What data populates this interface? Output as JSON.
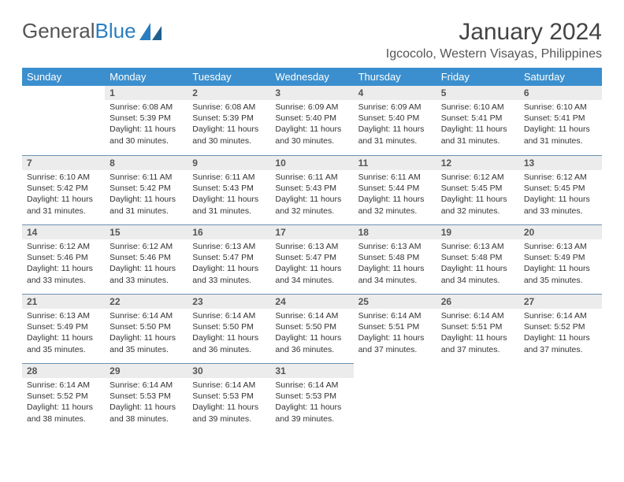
{
  "logo": {
    "text1": "General",
    "text2": "Blue"
  },
  "title": "January 2024",
  "location": "Igcocolo, Western Visayas, Philippines",
  "colors": {
    "header_bg": "#3b8fce",
    "daynum_bg": "#ececec",
    "cell_border": "#6a91b2",
    "text": "#333333",
    "logo_gray": "#555555",
    "logo_blue": "#2a7ec0"
  },
  "day_names": [
    "Sunday",
    "Monday",
    "Tuesday",
    "Wednesday",
    "Thursday",
    "Friday",
    "Saturday"
  ],
  "weeks": [
    [
      {
        "day": "",
        "sunrise": "",
        "sunset": "",
        "daylight": ""
      },
      {
        "day": "1",
        "sunrise": "Sunrise: 6:08 AM",
        "sunset": "Sunset: 5:39 PM",
        "daylight": "Daylight: 11 hours and 30 minutes."
      },
      {
        "day": "2",
        "sunrise": "Sunrise: 6:08 AM",
        "sunset": "Sunset: 5:39 PM",
        "daylight": "Daylight: 11 hours and 30 minutes."
      },
      {
        "day": "3",
        "sunrise": "Sunrise: 6:09 AM",
        "sunset": "Sunset: 5:40 PM",
        "daylight": "Daylight: 11 hours and 30 minutes."
      },
      {
        "day": "4",
        "sunrise": "Sunrise: 6:09 AM",
        "sunset": "Sunset: 5:40 PM",
        "daylight": "Daylight: 11 hours and 31 minutes."
      },
      {
        "day": "5",
        "sunrise": "Sunrise: 6:10 AM",
        "sunset": "Sunset: 5:41 PM",
        "daylight": "Daylight: 11 hours and 31 minutes."
      },
      {
        "day": "6",
        "sunrise": "Sunrise: 6:10 AM",
        "sunset": "Sunset: 5:41 PM",
        "daylight": "Daylight: 11 hours and 31 minutes."
      }
    ],
    [
      {
        "day": "7",
        "sunrise": "Sunrise: 6:10 AM",
        "sunset": "Sunset: 5:42 PM",
        "daylight": "Daylight: 11 hours and 31 minutes."
      },
      {
        "day": "8",
        "sunrise": "Sunrise: 6:11 AM",
        "sunset": "Sunset: 5:42 PM",
        "daylight": "Daylight: 11 hours and 31 minutes."
      },
      {
        "day": "9",
        "sunrise": "Sunrise: 6:11 AM",
        "sunset": "Sunset: 5:43 PM",
        "daylight": "Daylight: 11 hours and 31 minutes."
      },
      {
        "day": "10",
        "sunrise": "Sunrise: 6:11 AM",
        "sunset": "Sunset: 5:43 PM",
        "daylight": "Daylight: 11 hours and 32 minutes."
      },
      {
        "day": "11",
        "sunrise": "Sunrise: 6:11 AM",
        "sunset": "Sunset: 5:44 PM",
        "daylight": "Daylight: 11 hours and 32 minutes."
      },
      {
        "day": "12",
        "sunrise": "Sunrise: 6:12 AM",
        "sunset": "Sunset: 5:45 PM",
        "daylight": "Daylight: 11 hours and 32 minutes."
      },
      {
        "day": "13",
        "sunrise": "Sunrise: 6:12 AM",
        "sunset": "Sunset: 5:45 PM",
        "daylight": "Daylight: 11 hours and 33 minutes."
      }
    ],
    [
      {
        "day": "14",
        "sunrise": "Sunrise: 6:12 AM",
        "sunset": "Sunset: 5:46 PM",
        "daylight": "Daylight: 11 hours and 33 minutes."
      },
      {
        "day": "15",
        "sunrise": "Sunrise: 6:12 AM",
        "sunset": "Sunset: 5:46 PM",
        "daylight": "Daylight: 11 hours and 33 minutes."
      },
      {
        "day": "16",
        "sunrise": "Sunrise: 6:13 AM",
        "sunset": "Sunset: 5:47 PM",
        "daylight": "Daylight: 11 hours and 33 minutes."
      },
      {
        "day": "17",
        "sunrise": "Sunrise: 6:13 AM",
        "sunset": "Sunset: 5:47 PM",
        "daylight": "Daylight: 11 hours and 34 minutes."
      },
      {
        "day": "18",
        "sunrise": "Sunrise: 6:13 AM",
        "sunset": "Sunset: 5:48 PM",
        "daylight": "Daylight: 11 hours and 34 minutes."
      },
      {
        "day": "19",
        "sunrise": "Sunrise: 6:13 AM",
        "sunset": "Sunset: 5:48 PM",
        "daylight": "Daylight: 11 hours and 34 minutes."
      },
      {
        "day": "20",
        "sunrise": "Sunrise: 6:13 AM",
        "sunset": "Sunset: 5:49 PM",
        "daylight": "Daylight: 11 hours and 35 minutes."
      }
    ],
    [
      {
        "day": "21",
        "sunrise": "Sunrise: 6:13 AM",
        "sunset": "Sunset: 5:49 PM",
        "daylight": "Daylight: 11 hours and 35 minutes."
      },
      {
        "day": "22",
        "sunrise": "Sunrise: 6:14 AM",
        "sunset": "Sunset: 5:50 PM",
        "daylight": "Daylight: 11 hours and 35 minutes."
      },
      {
        "day": "23",
        "sunrise": "Sunrise: 6:14 AM",
        "sunset": "Sunset: 5:50 PM",
        "daylight": "Daylight: 11 hours and 36 minutes."
      },
      {
        "day": "24",
        "sunrise": "Sunrise: 6:14 AM",
        "sunset": "Sunset: 5:50 PM",
        "daylight": "Daylight: 11 hours and 36 minutes."
      },
      {
        "day": "25",
        "sunrise": "Sunrise: 6:14 AM",
        "sunset": "Sunset: 5:51 PM",
        "daylight": "Daylight: 11 hours and 37 minutes."
      },
      {
        "day": "26",
        "sunrise": "Sunrise: 6:14 AM",
        "sunset": "Sunset: 5:51 PM",
        "daylight": "Daylight: 11 hours and 37 minutes."
      },
      {
        "day": "27",
        "sunrise": "Sunrise: 6:14 AM",
        "sunset": "Sunset: 5:52 PM",
        "daylight": "Daylight: 11 hours and 37 minutes."
      }
    ],
    [
      {
        "day": "28",
        "sunrise": "Sunrise: 6:14 AM",
        "sunset": "Sunset: 5:52 PM",
        "daylight": "Daylight: 11 hours and 38 minutes."
      },
      {
        "day": "29",
        "sunrise": "Sunrise: 6:14 AM",
        "sunset": "Sunset: 5:53 PM",
        "daylight": "Daylight: 11 hours and 38 minutes."
      },
      {
        "day": "30",
        "sunrise": "Sunrise: 6:14 AM",
        "sunset": "Sunset: 5:53 PM",
        "daylight": "Daylight: 11 hours and 39 minutes."
      },
      {
        "day": "31",
        "sunrise": "Sunrise: 6:14 AM",
        "sunset": "Sunset: 5:53 PM",
        "daylight": "Daylight: 11 hours and 39 minutes."
      },
      {
        "day": "",
        "sunrise": "",
        "sunset": "",
        "daylight": ""
      },
      {
        "day": "",
        "sunrise": "",
        "sunset": "",
        "daylight": ""
      },
      {
        "day": "",
        "sunrise": "",
        "sunset": "",
        "daylight": ""
      }
    ]
  ]
}
